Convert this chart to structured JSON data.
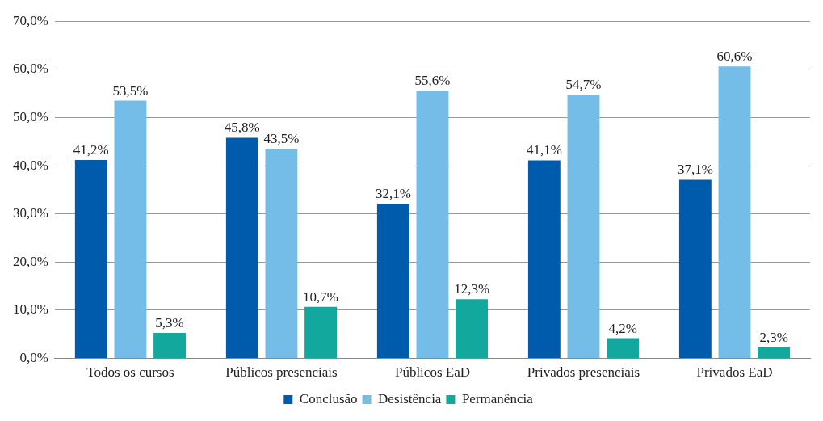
{
  "chart_data": {
    "type": "bar",
    "categories": [
      "Todos os cursos",
      "Públicos presenciais",
      "Públicos EaD",
      "Privados presenciais",
      "Privados EaD"
    ],
    "series": [
      {
        "name": "Conclusão",
        "color": "#005bac",
        "values": [
          41.2,
          45.8,
          32.1,
          41.1,
          37.1
        ],
        "value_labels": [
          "41,2%",
          "45,8%",
          "32,1%",
          "41,1%",
          "37,1%"
        ]
      },
      {
        "name": "Desistência",
        "color": "#74bde8",
        "values": [
          53.5,
          43.5,
          55.6,
          54.7,
          60.6
        ],
        "value_labels": [
          "53,5%",
          "43,5%",
          "55,6%",
          "54,7%",
          "60,6%"
        ]
      },
      {
        "name": "Permanência",
        "color": "#13a89e",
        "values": [
          5.3,
          10.7,
          12.3,
          4.2,
          2.3
        ],
        "value_labels": [
          "5,3%",
          "10,7%",
          "12,3%",
          "4,2%",
          "2,3%"
        ]
      }
    ],
    "ylim": [
      0,
      70
    ],
    "yticks": [
      {
        "value": 0,
        "label": "0,0%"
      },
      {
        "value": 10,
        "label": "10,0%"
      },
      {
        "value": 20,
        "label": "20,0%"
      },
      {
        "value": 30,
        "label": "30,0%"
      },
      {
        "value": 40,
        "label": "40,0%"
      },
      {
        "value": 50,
        "label": "50,0%"
      },
      {
        "value": 60,
        "label": "60,0%"
      },
      {
        "value": 70,
        "label": "70,0%"
      }
    ],
    "grid": "y",
    "legend": "bottom"
  }
}
